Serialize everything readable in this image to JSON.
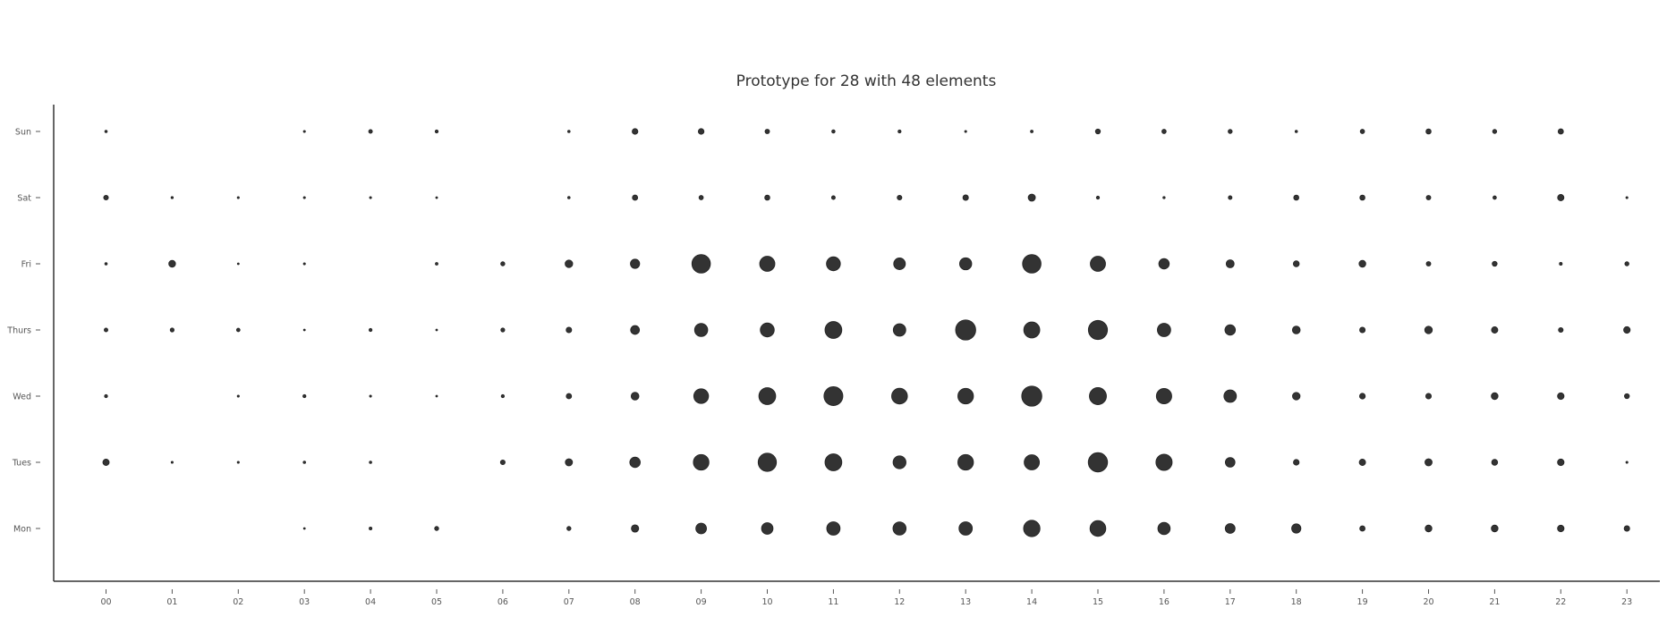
{
  "colors": {
    "marker": "#333333",
    "axis": "#333333",
    "text": "#555555",
    "background": "#ffffff"
  },
  "chart_data": {
    "type": "scatter",
    "subtype": "bubble-grid",
    "title": "Prototype for 28 with 48 elements",
    "xlabel": "",
    "ylabel": "",
    "grid": false,
    "x_categories": [
      "00",
      "01",
      "02",
      "03",
      "04",
      "05",
      "06",
      "07",
      "08",
      "09",
      "10",
      "11",
      "12",
      "13",
      "14",
      "15",
      "16",
      "17",
      "18",
      "19",
      "20",
      "21",
      "22",
      "23"
    ],
    "y_categories": [
      "Mon",
      "Tues",
      "Wed",
      "Thurs",
      "Fri",
      "Sat",
      "Sun"
    ],
    "size_note": "relative bubble radius, 0 = no marker",
    "series": [
      {
        "day": "Sun",
        "values": [
          1.2,
          0,
          0,
          1,
          1.8,
          1.5,
          0,
          1.2,
          2.8,
          2.8,
          2.2,
          1.6,
          1.5,
          1,
          1.3,
          2.4,
          2.1,
          2,
          1.2,
          2.1,
          2.5,
          2,
          2.6,
          0
        ]
      },
      {
        "day": "Sat",
        "values": [
          2.3,
          1.1,
          1,
          1,
          1,
          0.9,
          0,
          1.2,
          2.6,
          2.1,
          2.5,
          1.8,
          2.3,
          2.7,
          3.5,
          1.5,
          1.1,
          1.8,
          2.5,
          2.5,
          2.2,
          1.7,
          3.1,
          1
        ]
      },
      {
        "day": "Fri",
        "values": [
          1.2,
          3.3,
          0.8,
          1,
          0,
          1.3,
          2,
          3.7,
          4.5,
          9,
          7.4,
          6.8,
          5.7,
          5.9,
          9,
          7.4,
          5.1,
          3.9,
          2.9,
          3.3,
          2.2,
          2.4,
          1.4,
          2
        ]
      },
      {
        "day": "Thurs",
        "values": [
          1.8,
          1.9,
          1.7,
          0.7,
          1.5,
          0.7,
          1.9,
          2.7,
          4.3,
          6.4,
          6.8,
          8.2,
          6.1,
          9.8,
          7.8,
          9.3,
          6.5,
          5.1,
          3.8,
          2.7,
          3.7,
          3.1,
          2.3,
          3.2
        ]
      },
      {
        "day": "Wed",
        "values": [
          1.5,
          0,
          1,
          1.5,
          1,
          0.7,
          1.5,
          2.6,
          3.8,
          7.2,
          8.2,
          9.2,
          7.7,
          7.6,
          9.8,
          8.3,
          7.5,
          6.1,
          3.7,
          2.8,
          2.7,
          3.3,
          3.2,
          2.4
        ]
      },
      {
        "day": "Tues",
        "values": [
          3.1,
          1,
          1,
          1.2,
          1.2,
          0,
          2.3,
          3.5,
          5.1,
          7.6,
          8.9,
          8.2,
          6.3,
          7.6,
          7.4,
          9.4,
          7.9,
          4.7,
          2.8,
          3.1,
          3.5,
          2.9,
          3.2,
          1
        ]
      },
      {
        "day": "Mon",
        "values": [
          0,
          0,
          0,
          0.8,
          1.4,
          2,
          0,
          2,
          3.6,
          5.2,
          5.6,
          6.5,
          6.4,
          6.5,
          8,
          7.7,
          6,
          4.8,
          4.5,
          2.6,
          3.3,
          3.3,
          3.2,
          2.7
        ]
      }
    ]
  }
}
